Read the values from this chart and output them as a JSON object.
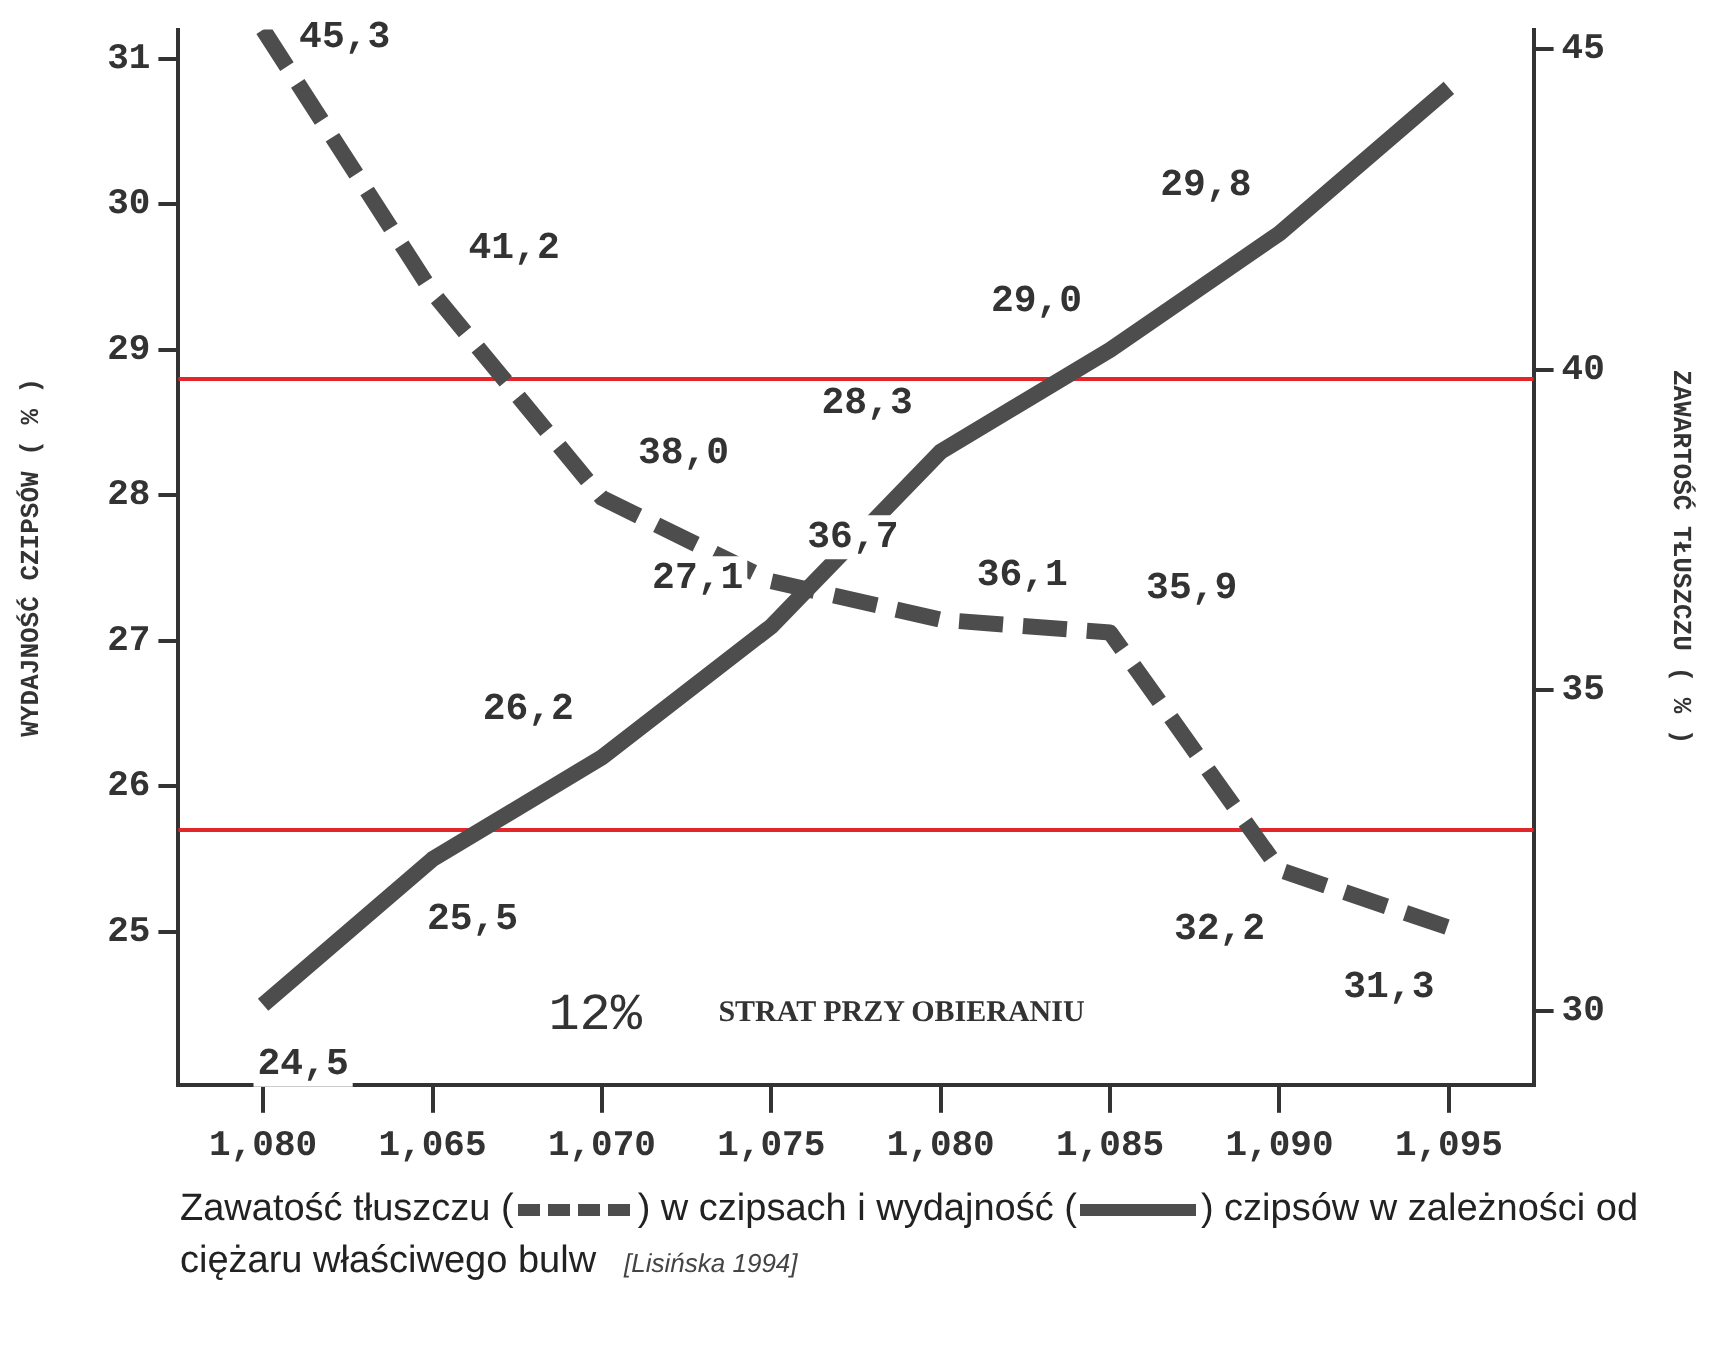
{
  "chart_data": {
    "type": "line",
    "categories": [
      "1,080",
      "1,065",
      "1,070",
      "1,075",
      "1,080",
      "1,085",
      "1,090",
      "1,095"
    ],
    "ylabel": "WYDAJNOŚĆ CZIPSÓW ( % )",
    "y2label": "ZAWARTOŚĆ TŁUSZCZU ( % )",
    "ylim": [
      23.95,
      31.2
    ],
    "yticks": [
      25,
      26,
      27,
      28,
      29,
      30,
      31
    ],
    "y2lim": [
      28.85,
      45.3
    ],
    "y2ticks": [
      30,
      35,
      40,
      45
    ],
    "series": [
      {
        "color": "#4d4d4d",
        "line_style": "dashed",
        "axis": "y2",
        "values": [
          45.3,
          41.2,
          38.0,
          36.7,
          36.1,
          35.9,
          32.2,
          31.3
        ],
        "value_labels": [
          "45,3",
          "41,2",
          "38,0",
          "36,7",
          "36,1",
          "35,9",
          "32,2",
          "31,3"
        ]
      },
      {
        "color": "#4d4d4d",
        "line_style": "solid",
        "axis": "y",
        "values": [
          24.5,
          25.5,
          26.2,
          27.1,
          28.3,
          29.0,
          29.8,
          30.8
        ],
        "value_labels": [
          "24,5",
          "25,5",
          "26,2",
          "27,1",
          "28,3",
          "29,0",
          "29,8",
          null
        ]
      }
    ],
    "ref_lines": [
      {
        "axis": "y",
        "value": 28.8,
        "color": "#e3262a"
      },
      {
        "axis": "y",
        "value": 25.7,
        "color": "#e3262a"
      }
    ],
    "annotations": [
      "12%",
      "STRAT PRZY OBIERANIU",
      "Zawatość tłuszczu (",
      ")   w czipsach i wydajność (",
      ") czipsów w zależności od",
      "ciężaru właściwego bulw",
      "[Lisińska 1994]"
    ],
    "grid": false,
    "legend": false,
    "marker": "none"
  }
}
